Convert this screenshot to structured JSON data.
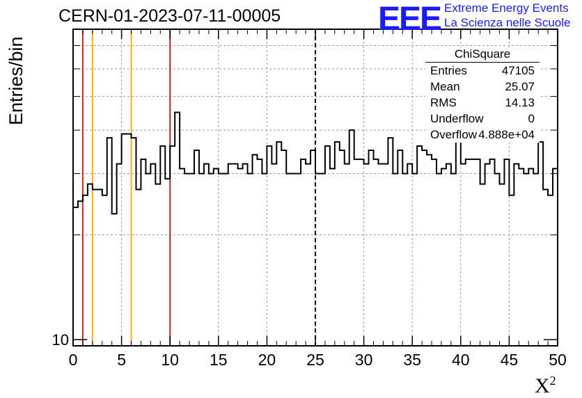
{
  "title": "CERN-01-2023-07-11-00005",
  "logo": {
    "mark": "EEE",
    "line1": "Extreme Energy Events",
    "line2": "La Scienza nelle Scuole",
    "color": "#1a1aff"
  },
  "stats": {
    "title": "ChiSquare",
    "rows": [
      {
        "label": "Entries",
        "value": "47105"
      },
      {
        "label": "Mean",
        "value": "25.07"
      },
      {
        "label": "RMS",
        "value": "14.13"
      },
      {
        "label": "Underflow",
        "value": "0"
      },
      {
        "label": "Overflow",
        "value": "4.888e+04"
      }
    ]
  },
  "chart_data": {
    "type": "histogram",
    "xlabel": "X",
    "xlabel_sup": "2",
    "ylabel": "Entries/bin",
    "xlim": [
      0,
      50
    ],
    "ylog": true,
    "ylim": [
      9.6,
      78
    ],
    "xticks": [
      0,
      5,
      10,
      15,
      20,
      25,
      30,
      35,
      40,
      45,
      50
    ],
    "yticks": [
      10
    ],
    "grid": true,
    "bin_width": 0.5,
    "values": [
      24,
      25,
      26,
      28,
      27,
      27,
      26,
      38,
      23,
      32,
      39,
      39,
      38,
      27,
      33,
      30,
      32,
      28,
      36,
      29,
      36,
      45,
      31,
      30,
      30,
      35,
      30,
      32,
      30,
      31,
      30,
      30,
      32,
      32,
      31,
      32,
      30,
      34,
      33,
      30,
      36,
      32,
      37,
      35,
      30,
      30,
      30,
      33,
      32,
      35,
      30,
      30,
      36,
      31,
      37,
      35,
      32,
      40,
      33,
      33,
      32,
      35,
      33,
      32,
      32,
      38,
      30,
      35,
      30,
      32,
      30,
      36,
      35,
      34,
      33,
      30,
      31,
      32,
      30,
      38,
      32,
      33,
      33,
      33,
      28,
      32,
      33,
      30,
      28,
      33,
      26,
      32,
      31,
      30,
      31,
      30,
      37,
      27,
      26,
      31
    ],
    "vlines": [
      {
        "x": 1,
        "color": "#e02020",
        "style": "solid"
      },
      {
        "x": 2,
        "color": "#f5b800",
        "style": "solid"
      },
      {
        "x": 6,
        "color": "#f5b800",
        "style": "solid"
      },
      {
        "x": 10,
        "color": "#e02020",
        "style": "solid"
      },
      {
        "x": 25,
        "color": "#000000",
        "style": "dashed"
      }
    ]
  }
}
